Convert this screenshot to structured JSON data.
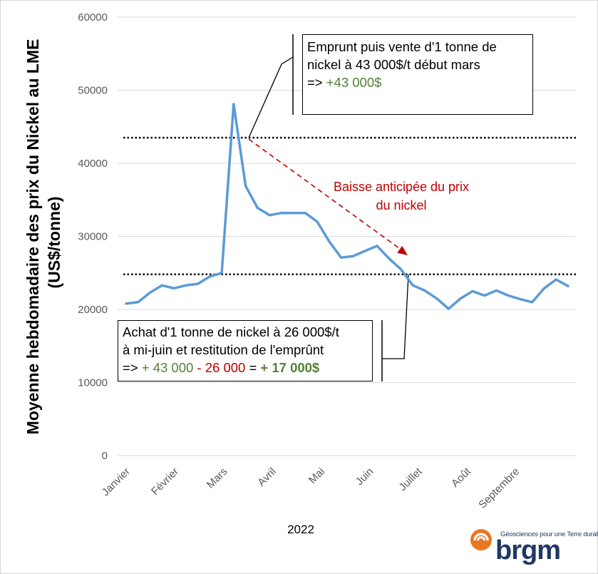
{
  "chart_data": {
    "type": "line",
    "ylabel_line1": "Moyenne hebdomadaire des prix du Nickel au LME",
    "ylabel_line2": "(US$/tonne)",
    "xlabel": "2022",
    "ylim": [
      0,
      60000
    ],
    "yticks": [
      0,
      10000,
      20000,
      30000,
      40000,
      50000,
      60000
    ],
    "months": [
      "Janvier",
      "Février",
      "Mars",
      "Avril",
      "Mai",
      "Juin",
      "Juillet",
      "Août",
      "Septembre"
    ],
    "grid": true,
    "series": [
      {
        "color": "#5b9bd5",
        "values": [
          20800,
          21000,
          22300,
          23300,
          22900,
          23300,
          23500,
          24500,
          25000,
          48100,
          36900,
          33900,
          32900,
          33200,
          33200,
          33200,
          32000,
          29300,
          27100,
          27300,
          28000,
          28700,
          27000,
          25500,
          23300,
          22600,
          21500,
          20100,
          21500,
          22500,
          21900,
          22600,
          21900,
          21400,
          21000,
          22900,
          24100,
          23200
        ]
      }
    ],
    "reference_lines": [
      43500,
      24800
    ],
    "arrow_text_line1": "Baisse anticipée du prix",
    "arrow_text_line2": "du nickel"
  },
  "annotations": {
    "top_line1": "Emprunt puis vente d'1 tonne de",
    "top_line2": "nickel à 43 000$/t début mars",
    "top_line3_prefix": "=> ",
    "top_line3_value": "+43 000$",
    "bottom_line1": "Achat d'1 tonne de nickel à 26 000$/t",
    "bottom_line2": "à mi-juin et restitution de l'emprûnt",
    "bottom_line3_prefix": "=> ",
    "bottom_line3_plus": "+ 43 000",
    "bottom_line3_minus": " - 26 000",
    "bottom_line3_equals": " = ",
    "bottom_line3_result": "+ 17 000$"
  },
  "logo": {
    "tagline": "Géosciences pour une Terre durable",
    "word": "brgm",
    "colors": {
      "orange": "#e87722",
      "navy": "#1f3864"
    }
  }
}
